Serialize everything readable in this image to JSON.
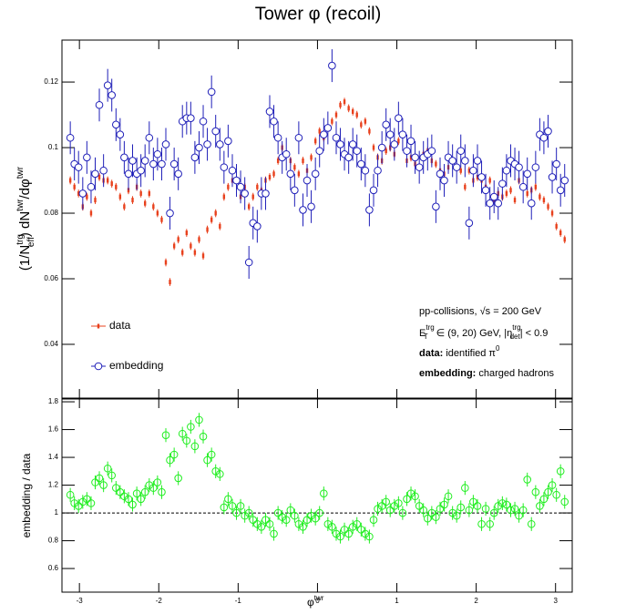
{
  "chart_data": {
    "type": "scatter",
    "title": "Tower φ (recoil)",
    "xlabel": [
      "φ",
      "twr"
    ],
    "xlim": [
      -3.22,
      3.21
    ],
    "xticks": [
      -3,
      -2,
      -1,
      0,
      1,
      2,
      3
    ],
    "x": [
      -3.115,
      -3.063,
      -3.011,
      -2.958,
      -2.906,
      -2.853,
      -2.801,
      -2.749,
      -2.696,
      -2.644,
      -2.592,
      -2.539,
      -2.487,
      -2.435,
      -2.382,
      -2.33,
      -2.277,
      -2.225,
      -2.173,
      -2.12,
      -2.068,
      -2.016,
      -1.963,
      -1.911,
      -1.859,
      -1.806,
      -1.754,
      -1.702,
      -1.649,
      -1.597,
      -1.545,
      -1.492,
      -1.44,
      -1.388,
      -1.335,
      -1.283,
      -1.23,
      -1.178,
      -1.126,
      -1.073,
      -1.021,
      -0.969,
      -0.916,
      -0.864,
      -0.812,
      -0.759,
      -0.707,
      -0.654,
      -0.602,
      -0.55,
      -0.497,
      -0.445,
      -0.393,
      -0.34,
      -0.288,
      -0.236,
      -0.183,
      -0.131,
      -0.079,
      -0.026,
      0.026,
      0.079,
      0.131,
      0.183,
      0.236,
      0.288,
      0.34,
      0.393,
      0.445,
      0.497,
      0.55,
      0.602,
      0.654,
      0.707,
      0.759,
      0.812,
      0.864,
      0.916,
      0.969,
      1.021,
      1.073,
      1.126,
      1.178,
      1.23,
      1.283,
      1.335,
      1.388,
      1.44,
      1.492,
      1.545,
      1.597,
      1.649,
      1.702,
      1.754,
      1.806,
      1.859,
      1.911,
      1.963,
      2.016,
      2.068,
      2.12,
      2.173,
      2.225,
      2.277,
      2.33,
      2.382,
      2.435,
      2.487,
      2.539,
      2.592,
      2.644,
      2.696,
      2.749,
      2.801,
      2.853,
      2.906,
      2.958,
      3.011,
      3.063,
      3.115
    ],
    "panels": [
      {
        "ylabel": [
          "(1/N",
          "trg",
          "eff",
          ") dN",
          "twr",
          "/dφ",
          "twr"
        ],
        "ylim": [
          0.0236,
          0.1328
        ],
        "yticks": [
          0.04,
          0.06,
          0.08,
          0.1,
          0.12
        ],
        "annotations": [
          [
            "pp-collisions, √s = 200 GeV"
          ],
          [
            "E",
            "trg",
            "T",
            " ∈ (9, 20) GeV, |η",
            "trg",
            "det",
            "| < 0.9"
          ],
          [
            "data:",
            " identified π",
            "0"
          ],
          [
            "embedding:",
            " charged hadrons"
          ]
        ],
        "series": [
          {
            "name": "data",
            "color": "#e8401c",
            "marker": "rect",
            "error": 0.0012,
            "values": [
              0.09,
              0.088,
              0.086,
              0.082,
              0.085,
              0.08,
              0.084,
              0.091,
              0.09,
              0.09,
              0.089,
              0.088,
              0.085,
              0.082,
              0.087,
              0.084,
              0.088,
              0.086,
              0.083,
              0.086,
              0.082,
              0.08,
              0.078,
              0.065,
              0.059,
              0.07,
              0.072,
              0.068,
              0.074,
              0.07,
              0.068,
              0.072,
              0.067,
              0.075,
              0.078,
              0.08,
              0.076,
              0.085,
              0.088,
              0.09,
              0.09,
              0.085,
              0.088,
              0.082,
              0.085,
              0.088,
              0.087,
              0.09,
              0.091,
              0.092,
              0.096,
              0.1,
              0.098,
              0.096,
              0.094,
              0.092,
              0.096,
              0.093,
              0.097,
              0.102,
              0.105,
              0.103,
              0.106,
              0.108,
              0.11,
              0.113,
              0.114,
              0.112,
              0.111,
              0.11,
              0.107,
              0.108,
              0.105,
              0.1,
              0.097,
              0.096,
              0.099,
              0.1,
              0.098,
              0.102,
              0.104,
              0.096,
              0.097,
              0.095,
              0.094,
              0.098,
              0.099,
              0.096,
              0.095,
              0.093,
              0.092,
              0.094,
              0.096,
              0.094,
              0.093,
              0.088,
              0.093,
              0.09,
              0.091,
              0.09,
              0.088,
              0.09,
              0.084,
              0.086,
              0.085,
              0.086,
              0.087,
              0.084,
              0.09,
              0.088,
              0.086,
              0.087,
              0.088,
              0.085,
              0.084,
              0.082,
              0.08,
              0.076,
              0.074,
              0.072
            ]
          },
          {
            "name": "embedding",
            "color": "#1f1fb8",
            "marker": "circle",
            "error": 0.005,
            "values": [
              0.103,
              0.095,
              0.094,
              0.086,
              0.097,
              0.088,
              0.092,
              0.113,
              0.093,
              0.119,
              0.116,
              0.107,
              0.104,
              0.097,
              0.092,
              0.096,
              0.092,
              0.093,
              0.096,
              0.103,
              0.095,
              0.098,
              0.095,
              0.101,
              0.08,
              0.095,
              0.092,
              0.108,
              0.109,
              0.109,
              0.097,
              0.1,
              0.108,
              0.101,
              0.117,
              0.105,
              0.101,
              0.094,
              0.102,
              0.093,
              0.09,
              0.088,
              0.086,
              0.065,
              0.077,
              0.076,
              0.086,
              0.086,
              0.111,
              0.108,
              0.103,
              0.097,
              0.098,
              0.092,
              0.087,
              0.103,
              0.081,
              0.09,
              0.082,
              0.092,
              0.099,
              0.104,
              0.106,
              0.125,
              0.103,
              0.101,
              0.098,
              0.097,
              0.101,
              0.099,
              0.095,
              0.093,
              0.081,
              0.087,
              0.093,
              0.1,
              0.107,
              0.104,
              0.101,
              0.109,
              0.104,
              0.099,
              0.102,
              0.097,
              0.094,
              0.097,
              0.098,
              0.099,
              0.082,
              0.092,
              0.09,
              0.097,
              0.096,
              0.094,
              0.099,
              0.096,
              0.077,
              0.093,
              0.096,
              0.091,
              0.087,
              0.083,
              0.085,
              0.083,
              0.089,
              0.093,
              0.096,
              0.095,
              0.094,
              0.088,
              0.092,
              0.083,
              0.094,
              0.104,
              0.103,
              0.105,
              0.091,
              0.095,
              0.087,
              0.09
            ]
          }
        ]
      },
      {
        "ylabel": [
          "embedding / data"
        ],
        "ylim": [
          0.43,
          1.82
        ],
        "yticks": [
          0.6,
          0.8,
          1,
          1.2,
          1.4,
          1.6,
          1.8
        ],
        "hline": 1,
        "series": [
          {
            "color": "#22ee22",
            "marker": "circle",
            "error": 0.05,
            "values": [
              1.13,
              1.07,
              1.05,
              1.08,
              1.1,
              1.07,
              1.22,
              1.25,
              1.2,
              1.32,
              1.27,
              1.18,
              1.15,
              1.12,
              1.1,
              1.06,
              1.14,
              1.1,
              1.15,
              1.2,
              1.18,
              1.22,
              1.15,
              1.56,
              1.38,
              1.42,
              1.25,
              1.57,
              1.52,
              1.62,
              1.48,
              1.67,
              1.55,
              1.38,
              1.42,
              1.3,
              1.28,
              1.04,
              1.1,
              1.05,
              1.0,
              1.05,
              0.98,
              1.0,
              0.95,
              0.92,
              0.9,
              0.95,
              0.92,
              0.85,
              1.0,
              0.97,
              0.95,
              1.02,
              0.98,
              0.92,
              0.9,
              0.95,
              0.98,
              0.96,
              1.0,
              1.14,
              0.92,
              0.9,
              0.85,
              0.83,
              0.88,
              0.85,
              0.9,
              0.92,
              0.88,
              0.85,
              0.83,
              0.95,
              1.03,
              1.05,
              1.08,
              1.02,
              1.05,
              1.07,
              1.0,
              1.1,
              1.14,
              1.12,
              1.05,
              1.02,
              0.96,
              1.0,
              0.97,
              1.03,
              1.06,
              1.12,
              1.0,
              0.98,
              1.04,
              1.18,
              1.02,
              1.08,
              1.05,
              0.92,
              1.03,
              0.92,
              1.0,
              1.05,
              1.07,
              1.06,
              1.02,
              1.03,
              0.98,
              1.02,
              1.24,
              0.92,
              1.15,
              1.05,
              1.1,
              1.15,
              1.2,
              1.13,
              1.3,
              1.08
            ]
          }
        ]
      }
    ]
  }
}
